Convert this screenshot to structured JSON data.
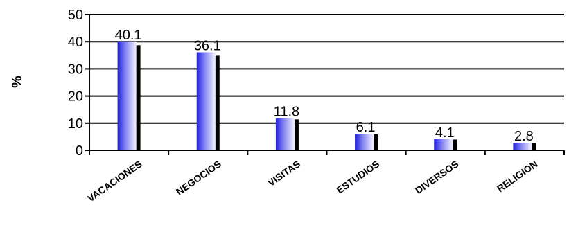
{
  "chart_data": {
    "type": "bar",
    "categories": [
      "VACACIONES",
      "NEGOCIOS",
      "VISITAS",
      "ESTUDIOS",
      "DIVERSOS",
      "RELIGION"
    ],
    "values": [
      40.1,
      36.1,
      11.8,
      6.1,
      4.1,
      2.8
    ],
    "value_labels": [
      "40.1",
      "36.1",
      "11.8",
      "6.1",
      "4.1",
      "2.8"
    ],
    "title": "",
    "xlabel": "",
    "ylabel": "%",
    "ylim": [
      0,
      50
    ],
    "yticks": [
      0,
      10,
      20,
      30,
      40,
      50
    ],
    "grid": true,
    "legend": "none",
    "colors": {
      "bar_dark": "#2020e0",
      "bar_light": "#f2f2ff",
      "shadow": "#000000",
      "grid": "#000000"
    }
  }
}
